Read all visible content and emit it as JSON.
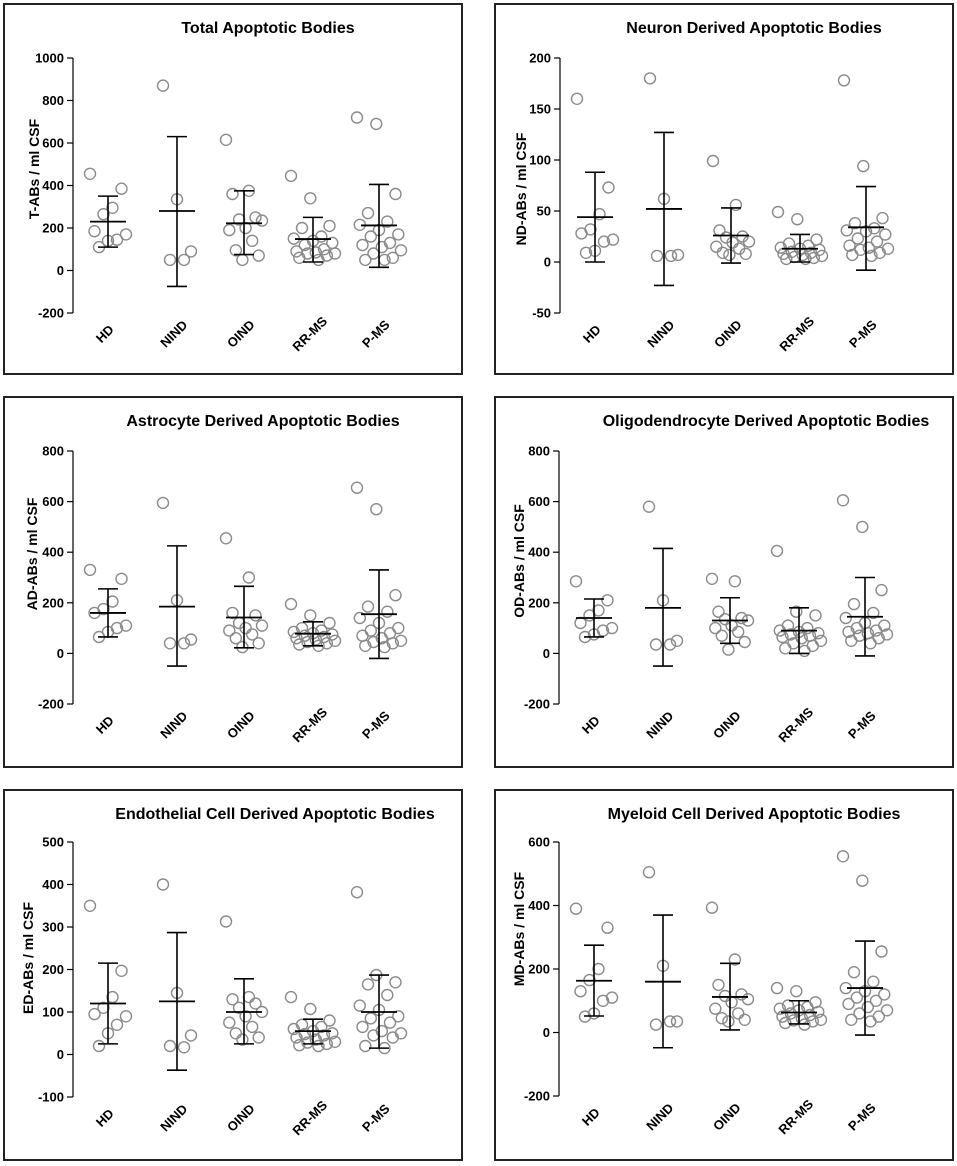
{
  "chart_data": [
    {
      "type": "scatter",
      "title": "Total Apoptotic Bodies",
      "ylabel": "T-ABs / ml CSF",
      "xlabel": "",
      "categories": [
        "HD",
        "NIND",
        "OIND",
        "RR-MS",
        "P-MS"
      ],
      "ylim": [
        -200,
        1000
      ],
      "yticks": [
        -200,
        0,
        200,
        400,
        600,
        800,
        1000
      ],
      "series": [
        {
          "name": "HD",
          "mean": 230,
          "sd_low": 110,
          "sd_high": 350,
          "points": [
            455,
            385,
            295,
            265,
            185,
            170,
            145,
            140,
            110
          ]
        },
        {
          "name": "NIND",
          "mean": 280,
          "sd_low": -75,
          "sd_high": 630,
          "points": [
            870,
            335,
            90,
            50,
            50
          ]
        },
        {
          "name": "OIND",
          "mean": 222,
          "sd_low": 75,
          "sd_high": 375,
          "points": [
            615,
            375,
            360,
            250,
            240,
            235,
            200,
            190,
            140,
            95,
            70,
            50
          ]
        },
        {
          "name": "RR-MS",
          "mean": 148,
          "sd_low": 40,
          "sd_high": 250,
          "points": [
            445,
            340,
            210,
            200,
            160,
            150,
            140,
            130,
            120,
            100,
            90,
            85,
            80,
            80,
            70,
            60,
            50
          ]
        },
        {
          "name": "P-MS",
          "mean": 212,
          "sd_low": 15,
          "sd_high": 405,
          "points": [
            720,
            690,
            360,
            270,
            230,
            215,
            190,
            170,
            160,
            130,
            120,
            110,
            95,
            80,
            60,
            50,
            50
          ]
        }
      ]
    },
    {
      "type": "scatter",
      "title": "Neuron Derived Apoptotic Bodies",
      "ylabel": "ND-ABs / ml CSF",
      "xlabel": "",
      "categories": [
        "HD",
        "NIND",
        "OIND",
        "RR-MS",
        "P-MS"
      ],
      "ylim": [
        -50,
        200
      ],
      "yticks": [
        -50,
        0,
        50,
        100,
        150,
        200
      ],
      "series": [
        {
          "name": "HD",
          "mean": 44,
          "sd_low": 0,
          "sd_high": 88,
          "points": [
            160,
            73,
            47,
            32,
            28,
            22,
            20,
            11,
            9
          ]
        },
        {
          "name": "NIND",
          "mean": 52,
          "sd_low": -23,
          "sd_high": 127,
          "points": [
            180,
            62,
            7,
            6,
            6
          ]
        },
        {
          "name": "OIND",
          "mean": 26,
          "sd_low": -1,
          "sd_high": 53,
          "points": [
            99,
            56,
            31,
            25,
            24,
            20,
            19,
            15,
            13,
            9,
            8,
            7
          ]
        },
        {
          "name": "RR-MS",
          "mean": 13,
          "sd_low": 0,
          "sd_high": 27,
          "points": [
            49,
            42,
            22,
            18,
            16,
            14,
            13,
            12,
            10,
            9,
            8,
            7,
            6,
            5,
            4,
            3,
            3
          ]
        },
        {
          "name": "P-MS",
          "mean": 34,
          "sd_low": -8,
          "sd_high": 74,
          "points": [
            178,
            94,
            43,
            38,
            33,
            31,
            30,
            27,
            23,
            20,
            16,
            14,
            13,
            12,
            9,
            7,
            6
          ]
        }
      ]
    },
    {
      "type": "scatter",
      "title": "Astrocyte Derived Apoptotic Bodies",
      "ylabel": "AD-ABs / ml CSF",
      "xlabel": "",
      "categories": [
        "HD",
        "NIND",
        "OIND",
        "RR-MS",
        "P-MS"
      ],
      "ylim": [
        -200,
        800
      ],
      "yticks": [
        -200,
        0,
        200,
        400,
        600,
        800
      ],
      "series": [
        {
          "name": "HD",
          "mean": 160,
          "sd_low": 65,
          "sd_high": 255,
          "points": [
            330,
            295,
            205,
            175,
            160,
            110,
            100,
            85,
            65
          ]
        },
        {
          "name": "NIND",
          "mean": 185,
          "sd_low": -50,
          "sd_high": 425,
          "points": [
            595,
            210,
            55,
            40,
            40
          ]
        },
        {
          "name": "OIND",
          "mean": 142,
          "sd_low": 22,
          "sd_high": 265,
          "points": [
            455,
            300,
            160,
            150,
            120,
            110,
            100,
            90,
            75,
            60,
            40,
            25
          ]
        },
        {
          "name": "RR-MS",
          "mean": 78,
          "sd_low": 30,
          "sd_high": 125,
          "points": [
            195,
            150,
            120,
            100,
            90,
            85,
            80,
            75,
            70,
            65,
            60,
            55,
            50,
            45,
            40,
            35,
            30
          ]
        },
        {
          "name": "P-MS",
          "mean": 155,
          "sd_low": -20,
          "sd_high": 330,
          "points": [
            655,
            570,
            230,
            185,
            165,
            140,
            120,
            100,
            90,
            80,
            70,
            60,
            50,
            45,
            40,
            30,
            25
          ]
        }
      ]
    },
    {
      "type": "scatter",
      "title": "Oligodendrocyte Derived Apoptotic Bodies",
      "ylabel": "OD-ABs / ml CSF",
      "xlabel": "",
      "categories": [
        "HD",
        "NIND",
        "OIND",
        "RR-MS",
        "P-MS"
      ],
      "ylim": [
        -200,
        800
      ],
      "yticks": [
        -200,
        0,
        200,
        400,
        600,
        800
      ],
      "series": [
        {
          "name": "HD",
          "mean": 140,
          "sd_low": 65,
          "sd_high": 215,
          "points": [
            285,
            210,
            170,
            150,
            120,
            100,
            90,
            75,
            65
          ]
        },
        {
          "name": "NIND",
          "mean": 180,
          "sd_low": -50,
          "sd_high": 415,
          "points": [
            580,
            210,
            50,
            35,
            35
          ]
        },
        {
          "name": "OIND",
          "mean": 130,
          "sd_low": 40,
          "sd_high": 220,
          "points": [
            295,
            285,
            165,
            140,
            135,
            130,
            110,
            100,
            85,
            70,
            45,
            15
          ]
        },
        {
          "name": "RR-MS",
          "mean": 90,
          "sd_low": 0,
          "sd_high": 180,
          "points": [
            405,
            165,
            150,
            110,
            100,
            90,
            85,
            80,
            75,
            70,
            65,
            60,
            50,
            40,
            30,
            20,
            10
          ]
        },
        {
          "name": "P-MS",
          "mean": 145,
          "sd_low": -10,
          "sd_high": 300,
          "points": [
            605,
            500,
            250,
            195,
            160,
            140,
            120,
            110,
            100,
            90,
            85,
            80,
            75,
            70,
            60,
            50,
            40
          ]
        }
      ]
    },
    {
      "type": "scatter",
      "title": "Endothelial Cell Derived Apoptotic Bodies",
      "ylabel": "ED-ABs / ml CSF",
      "xlabel": "",
      "categories": [
        "HD",
        "NIND",
        "OIND",
        "RR-MS",
        "P-MS"
      ],
      "ylim": [
        -100,
        500
      ],
      "yticks": [
        -100,
        0,
        100,
        200,
        300,
        400,
        500
      ],
      "series": [
        {
          "name": "HD",
          "mean": 120,
          "sd_low": 25,
          "sd_high": 215,
          "points": [
            350,
            197,
            135,
            110,
            95,
            90,
            70,
            50,
            20
          ]
        },
        {
          "name": "NIND",
          "mean": 125,
          "sd_low": -37,
          "sd_high": 287,
          "points": [
            400,
            145,
            45,
            20,
            17
          ]
        },
        {
          "name": "OIND",
          "mean": 100,
          "sd_low": 25,
          "sd_high": 178,
          "points": [
            313,
            135,
            130,
            120,
            110,
            100,
            90,
            75,
            65,
            50,
            40,
            35
          ]
        },
        {
          "name": "RR-MS",
          "mean": 55,
          "sd_low": 25,
          "sd_high": 83,
          "points": [
            135,
            107,
            80,
            70,
            65,
            60,
            55,
            50,
            48,
            45,
            40,
            35,
            30,
            28,
            25,
            22,
            20
          ]
        },
        {
          "name": "P-MS",
          "mean": 100,
          "sd_low": 15,
          "sd_high": 187,
          "points": [
            382,
            187,
            170,
            165,
            140,
            115,
            105,
            90,
            85,
            75,
            65,
            55,
            50,
            45,
            40,
            20,
            15
          ]
        }
      ]
    },
    {
      "type": "scatter",
      "title": "Myeloid Cell Derived Apoptotic Bodies",
      "ylabel": "MD-ABs / ml CSF",
      "xlabel": "",
      "categories": [
        "HD",
        "NIND",
        "OIND",
        "RR-MS",
        "P-MS"
      ],
      "ylim": [
        -200,
        600
      ],
      "yticks": [
        -200,
        0,
        200,
        400,
        600
      ],
      "series": [
        {
          "name": "HD",
          "mean": 163,
          "sd_low": 52,
          "sd_high": 275,
          "points": [
            390,
            330,
            200,
            165,
            130,
            110,
            100,
            60,
            50
          ]
        },
        {
          "name": "NIND",
          "mean": 160,
          "sd_low": -48,
          "sd_high": 370,
          "points": [
            505,
            210,
            35,
            25,
            35
          ]
        },
        {
          "name": "OIND",
          "mean": 112,
          "sd_low": 8,
          "sd_high": 218,
          "points": [
            393,
            230,
            150,
            120,
            115,
            105,
            95,
            75,
            60,
            45,
            40,
            35
          ]
        },
        {
          "name": "RR-MS",
          "mean": 63,
          "sd_low": 27,
          "sd_high": 100,
          "points": [
            140,
            130,
            95,
            85,
            80,
            75,
            70,
            65,
            60,
            55,
            50,
            45,
            40,
            38,
            35,
            30,
            25
          ]
        },
        {
          "name": "P-MS",
          "mean": 140,
          "sd_low": -8,
          "sd_high": 288,
          "points": [
            555,
            478,
            255,
            190,
            160,
            140,
            130,
            120,
            110,
            100,
            90,
            80,
            70,
            60,
            50,
            40,
            35
          ]
        }
      ]
    }
  ]
}
